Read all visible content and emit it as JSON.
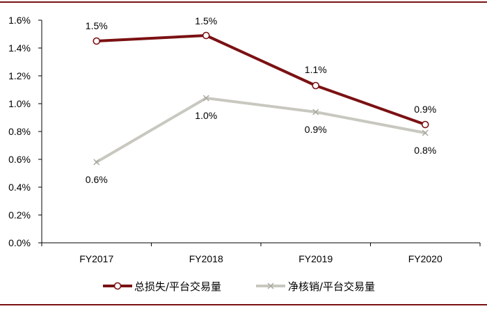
{
  "chart_data": {
    "type": "line",
    "categories": [
      "FY2017",
      "FY2018",
      "FY2019",
      "FY2020"
    ],
    "ylim": [
      0.0,
      1.6
    ],
    "yticks": [
      "0.0%",
      "0.2%",
      "0.4%",
      "0.6%",
      "0.8%",
      "1.0%",
      "1.2%",
      "1.4%",
      "1.6%"
    ],
    "grid": false,
    "legend_position": "bottom",
    "series": [
      {
        "name": "总损失/平台交易量",
        "values": [
          1.45,
          1.49,
          1.13,
          0.85
        ],
        "labels": [
          "1.5%",
          "1.5%",
          "1.1%",
          "0.9%"
        ],
        "color": "#7b1113",
        "marker": "circle"
      },
      {
        "name": "净核销/平台交易量",
        "values": [
          0.58,
          1.04,
          0.94,
          0.79
        ],
        "labels": [
          "0.6%",
          "1.0%",
          "0.9%",
          "0.8%"
        ],
        "color": "#c8c8c0",
        "marker": "x"
      }
    ]
  },
  "colors": {
    "frame": "#7b1113",
    "axis": "#000000"
  }
}
